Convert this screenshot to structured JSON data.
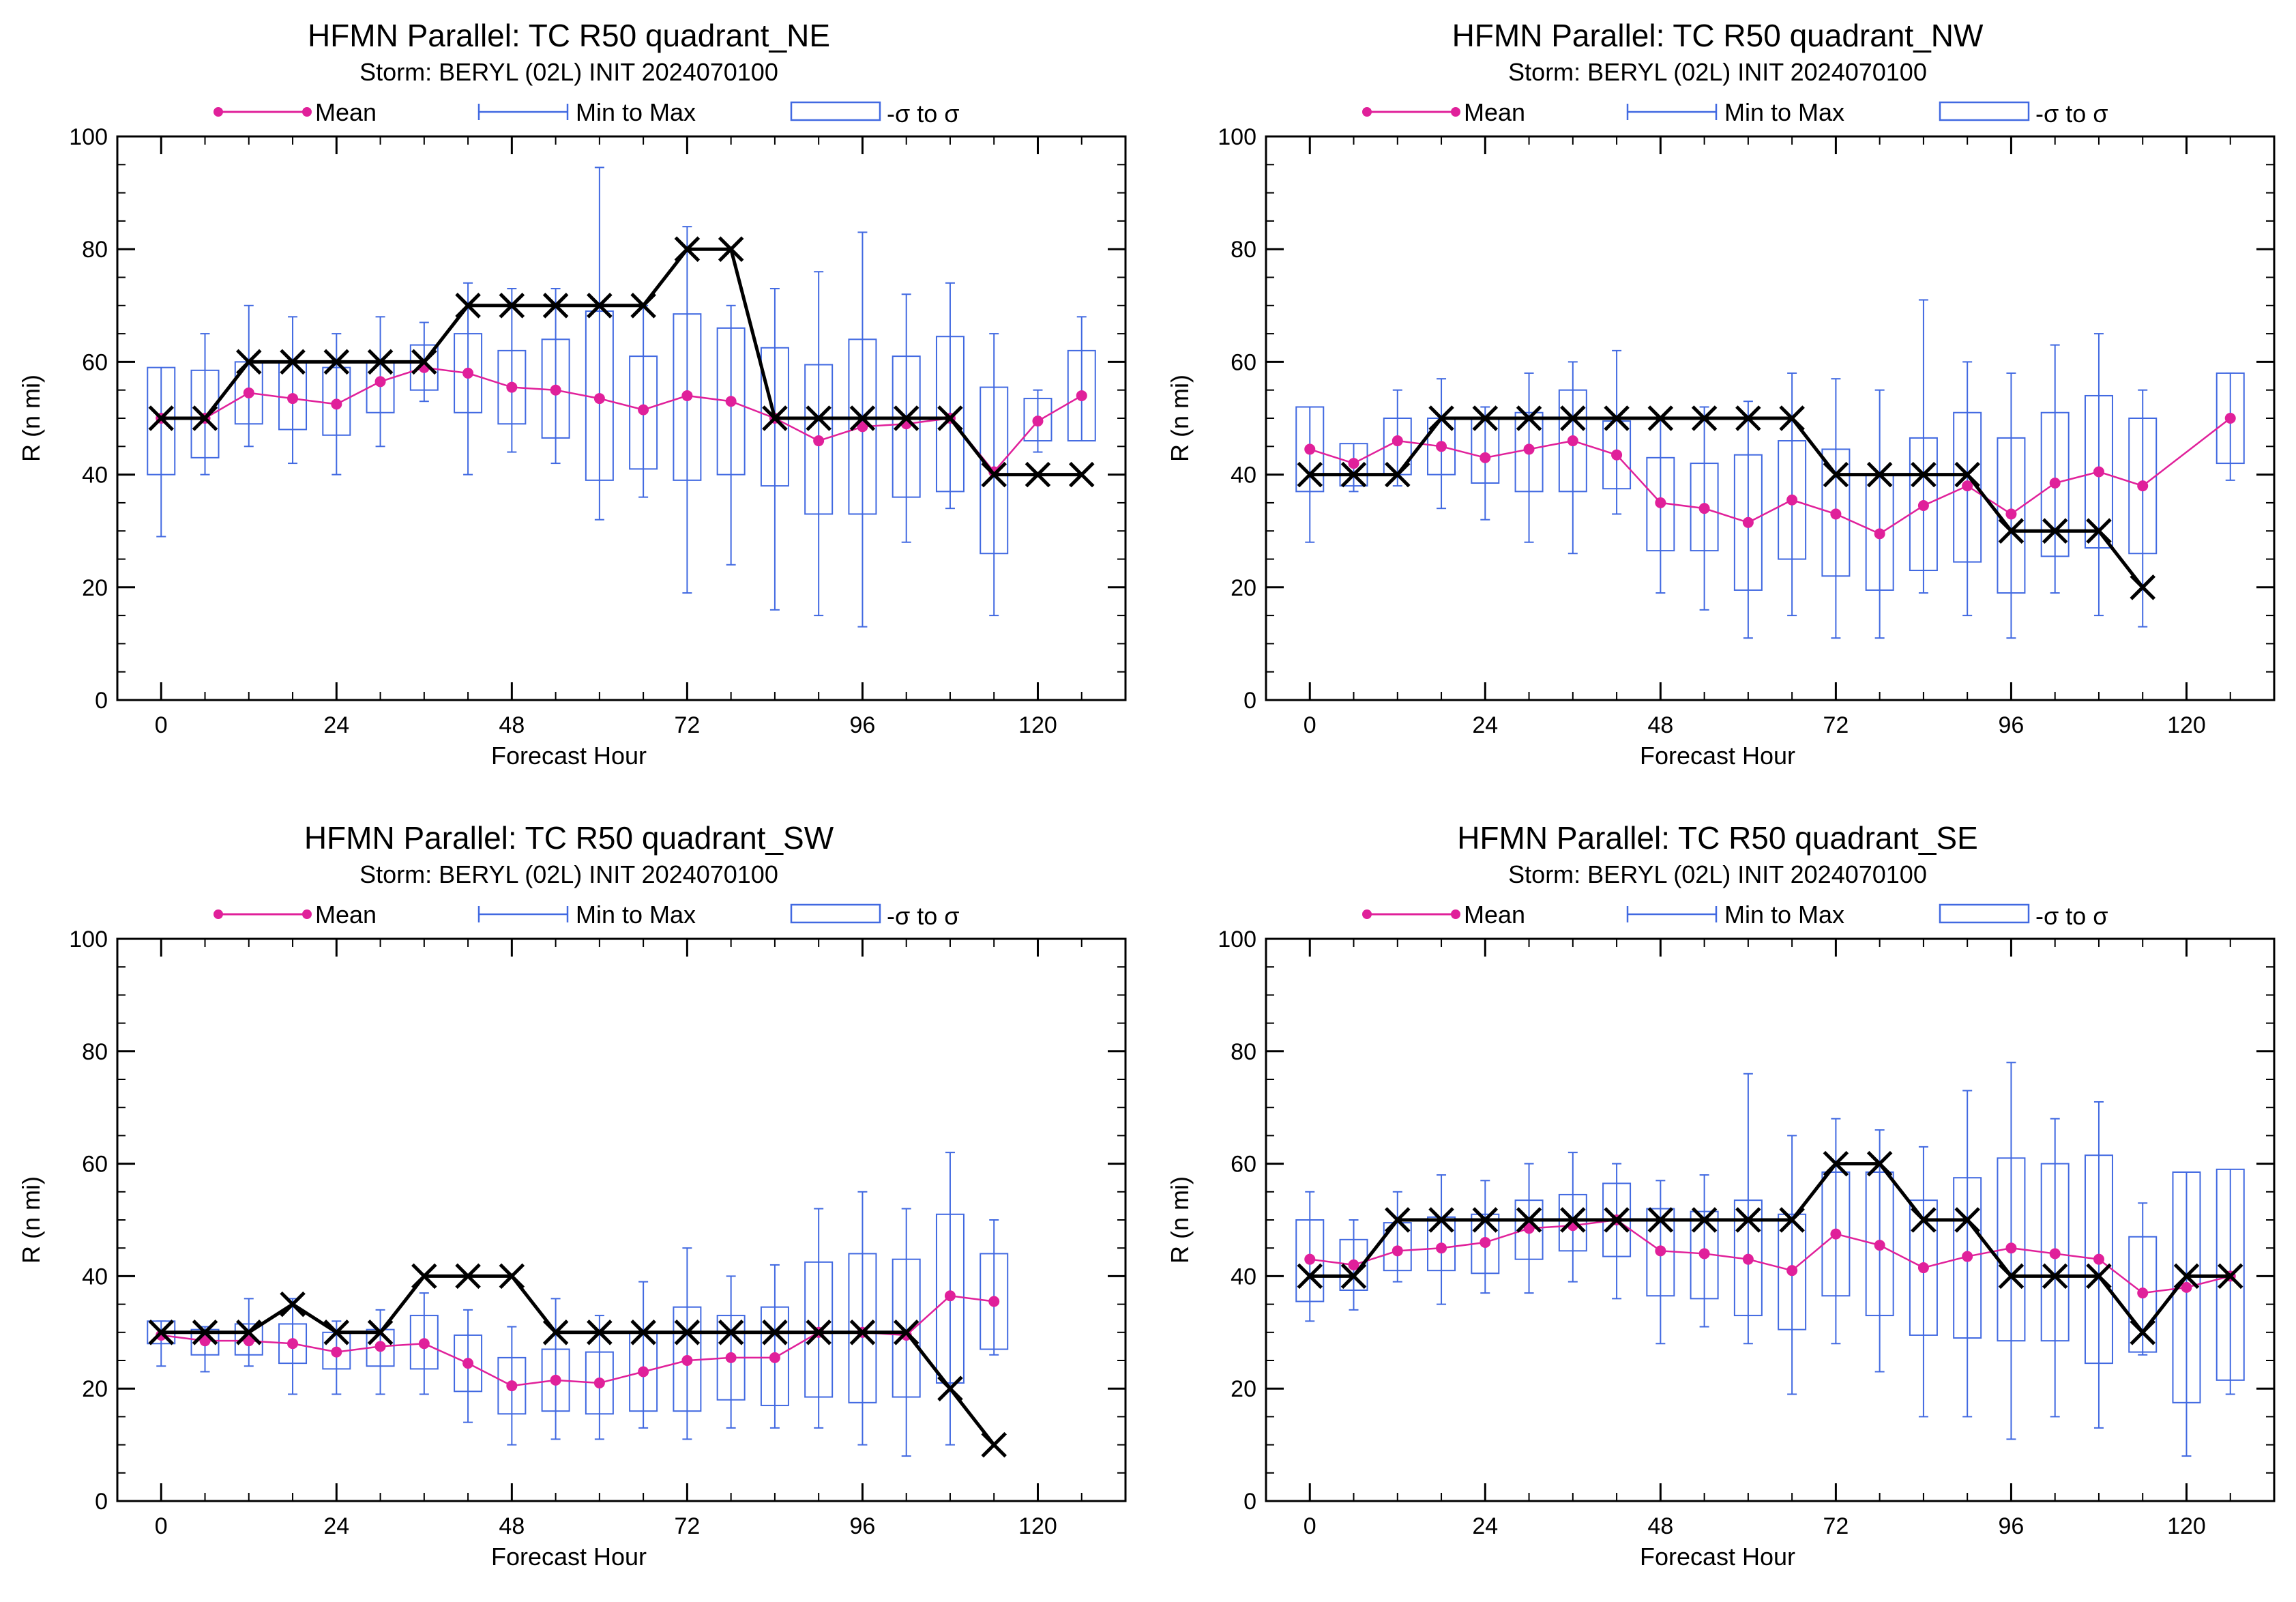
{
  "figure": {
    "legend": {
      "mean_label": "Mean",
      "minmax_label": "Min to Max",
      "sigma_label": "-σ to σ"
    },
    "colors": {
      "mean": "#e0209a",
      "box": "#4169e1",
      "obs": "#000000"
    }
  },
  "chart_data": [
    {
      "type": "box",
      "title": "HFMN Parallel: TC  R50 quadrant_NE",
      "subtitle": "Storm: BERYL (02L) INIT 2024070100",
      "xlabel": "Forecast Hour",
      "ylabel": "R (n mi)",
      "xlim": [
        -6,
        132
      ],
      "ylim": [
        0,
        100
      ],
      "xticks": [
        0,
        24,
        48,
        72,
        96,
        120
      ],
      "yticks": [
        0,
        20,
        40,
        60,
        80,
        100
      ],
      "hours": [
        0,
        6,
        12,
        18,
        24,
        30,
        36,
        42,
        48,
        54,
        60,
        66,
        72,
        78,
        84,
        90,
        96,
        102,
        108,
        114,
        120,
        126
      ],
      "mean": [
        50,
        50,
        54.5,
        53.5,
        52.5,
        56.5,
        59,
        58,
        55.5,
        55,
        53.5,
        51.5,
        54,
        53,
        50,
        46,
        48.5,
        49,
        50,
        40.5,
        49.5,
        54
      ],
      "box_low": [
        40,
        43,
        49,
        48,
        47,
        51,
        55,
        51,
        49,
        46.5,
        39,
        41,
        39,
        40,
        38,
        33,
        33,
        36,
        37,
        26,
        46,
        46
      ],
      "box_high": [
        59,
        58.5,
        60,
        60,
        59,
        60,
        63,
        65,
        62,
        64,
        69,
        61,
        68.5,
        66,
        62.5,
        59.5,
        64,
        61,
        64.5,
        55.5,
        53.5,
        62
      ],
      "min": [
        29,
        40,
        45,
        42,
        40,
        45,
        53,
        40,
        44,
        42,
        32,
        36,
        19,
        24,
        16,
        15,
        13,
        28,
        34,
        15,
        44,
        48
      ],
      "max": [
        57,
        65,
        70,
        68,
        65,
        68,
        67,
        74,
        73,
        73,
        94.5,
        70,
        84,
        70,
        73,
        76,
        83,
        72,
        74,
        65,
        55,
        68
      ],
      "obs_hours": [
        0,
        6,
        12,
        18,
        24,
        30,
        36,
        42,
        48,
        54,
        60,
        66,
        72,
        78,
        84,
        90,
        96,
        102,
        108,
        114,
        120,
        126
      ],
      "obs": [
        50,
        50,
        60,
        60,
        60,
        60,
        60,
        70,
        70,
        70,
        70,
        70,
        80,
        80,
        50,
        50,
        50,
        50,
        50,
        40,
        40,
        40
      ]
    },
    {
      "type": "box",
      "title": "HFMN Parallel: TC  R50 quadrant_NW",
      "subtitle": "Storm: BERYL (02L) INIT 2024070100",
      "xlabel": "Forecast Hour",
      "ylabel": "R (n mi)",
      "xlim": [
        -6,
        132
      ],
      "ylim": [
        0,
        100
      ],
      "xticks": [
        0,
        24,
        48,
        72,
        96,
        120
      ],
      "yticks": [
        0,
        20,
        40,
        60,
        80,
        100
      ],
      "hours": [
        0,
        6,
        12,
        18,
        24,
        30,
        36,
        42,
        48,
        54,
        60,
        66,
        72,
        78,
        84,
        90,
        96,
        102,
        108,
        114,
        126
      ],
      "mean": [
        44.5,
        42,
        46,
        45,
        43,
        44.5,
        46,
        43.5,
        35,
        34,
        31.5,
        35.5,
        33,
        29.5,
        34.5,
        38,
        33,
        38.5,
        40.5,
        38,
        50
      ],
      "box_low": [
        37,
        38,
        40,
        40,
        38.5,
        37,
        37,
        37.5,
        26.5,
        26.5,
        19.5,
        25,
        22,
        19.5,
        23,
        24.5,
        19,
        25.5,
        27,
        26,
        42
      ],
      "box_high": [
        52,
        45.5,
        50,
        50,
        50,
        51,
        55,
        49.5,
        43,
        42,
        43.5,
        46,
        44.5,
        40,
        46.5,
        51,
        46.5,
        51,
        54,
        50,
        58
      ],
      "min": [
        28,
        37,
        38,
        34,
        32,
        28,
        26,
        33,
        19,
        16,
        11,
        15,
        11,
        11,
        19,
        15,
        11,
        19,
        15,
        13,
        39
      ],
      "max": [
        50,
        45,
        55,
        57,
        52,
        58,
        60,
        62,
        50,
        52,
        53,
        58,
        57,
        55,
        71,
        60,
        58,
        63,
        65,
        55,
        58
      ],
      "obs_hours": [
        0,
        6,
        12,
        18,
        24,
        30,
        36,
        42,
        48,
        54,
        60,
        66,
        72,
        78,
        84,
        90,
        96,
        102,
        108,
        114
      ],
      "obs": [
        40,
        40,
        40,
        50,
        50,
        50,
        50,
        50,
        50,
        50,
        50,
        50,
        40,
        40,
        40,
        40,
        30,
        30,
        30,
        20
      ]
    },
    {
      "type": "box",
      "title": "HFMN Parallel: TC  R50 quadrant_SW",
      "subtitle": "Storm: BERYL (02L) INIT 2024070100",
      "xlabel": "Forecast Hour",
      "ylabel": "R (n mi)",
      "xlim": [
        -6,
        132
      ],
      "ylim": [
        0,
        100
      ],
      "xticks": [
        0,
        24,
        48,
        72,
        96,
        120
      ],
      "yticks": [
        0,
        20,
        40,
        60,
        80,
        100
      ],
      "hours": [
        0,
        6,
        12,
        18,
        24,
        30,
        36,
        42,
        48,
        54,
        60,
        66,
        72,
        78,
        84,
        90,
        96,
        102,
        108,
        114
      ],
      "mean": [
        29.5,
        28.5,
        28.5,
        28,
        26.5,
        27.5,
        28,
        24.5,
        20.5,
        21.5,
        21,
        23,
        25,
        25.5,
        25.5,
        30,
        30,
        29.5,
        36.5,
        35.5
      ],
      "box_low": [
        28,
        26,
        26,
        24.5,
        23.5,
        24,
        23.5,
        19.5,
        15.5,
        16,
        15.5,
        16,
        16,
        18,
        17,
        18.5,
        17.5,
        18.5,
        21,
        27
      ],
      "box_high": [
        32,
        30.5,
        31.5,
        31.5,
        30,
        30.5,
        33,
        29.5,
        25.5,
        27,
        26.5,
        30,
        34.5,
        33,
        34.5,
        42.5,
        44,
        43,
        51,
        44
      ],
      "min": [
        24,
        23,
        24,
        19,
        19,
        19,
        19,
        14,
        10,
        11,
        11,
        13,
        11,
        13,
        13,
        13,
        10,
        8,
        10,
        26
      ],
      "max": [
        32,
        31,
        36,
        36,
        32,
        34,
        37,
        34,
        31,
        36,
        33,
        39,
        45,
        40,
        42,
        52,
        55,
        52,
        62,
        50
      ],
      "obs_hours": [
        0,
        6,
        12,
        18,
        24,
        30,
        36,
        42,
        48,
        54,
        60,
        66,
        72,
        78,
        84,
        90,
        96,
        102,
        108,
        114
      ],
      "obs": [
        30,
        30,
        30,
        35,
        30,
        30,
        40,
        40,
        40,
        30,
        30,
        30,
        30,
        30,
        30,
        30,
        30,
        30,
        20,
        10
      ]
    },
    {
      "type": "box",
      "title": "HFMN Parallel: TC  R50 quadrant_SE",
      "subtitle": "Storm: BERYL (02L) INIT 2024070100",
      "xlabel": "Forecast Hour",
      "ylabel": "R (n mi)",
      "xlim": [
        -6,
        132
      ],
      "ylim": [
        0,
        100
      ],
      "xticks": [
        0,
        24,
        48,
        72,
        96,
        120
      ],
      "yticks": [
        0,
        20,
        40,
        60,
        80,
        100
      ],
      "hours": [
        0,
        6,
        12,
        18,
        24,
        30,
        36,
        42,
        48,
        54,
        60,
        66,
        72,
        78,
        84,
        90,
        96,
        102,
        108,
        114,
        120,
        126
      ],
      "mean": [
        43,
        42,
        44.5,
        45,
        46,
        48.5,
        49,
        50,
        44.5,
        44,
        43,
        41,
        47.5,
        45.5,
        41.5,
        43.5,
        45,
        44,
        43,
        37,
        38,
        40
      ],
      "box_low": [
        35.5,
        37.5,
        41,
        41,
        40.5,
        43,
        44.5,
        43.5,
        36.5,
        36,
        33,
        30.5,
        36.5,
        33,
        29.5,
        29,
        28.5,
        28.5,
        24.5,
        26.5,
        17.5,
        21.5
      ],
      "box_high": [
        50,
        46.5,
        49.5,
        50.5,
        51,
        53.5,
        54.5,
        56.5,
        52,
        51.5,
        53.5,
        51,
        58.5,
        58.5,
        53.5,
        57.5,
        61,
        60,
        61.5,
        47,
        58.5,
        59
      ],
      "min": [
        32,
        34,
        39,
        35,
        37,
        37,
        39,
        36,
        28,
        31,
        28,
        19,
        28,
        23,
        15,
        15,
        11,
        15,
        13,
        26,
        8,
        19
      ],
      "max": [
        55,
        50,
        55,
        58,
        57,
        60,
        62,
        60,
        57,
        58,
        76,
        65,
        68,
        66,
        63,
        73,
        78,
        68,
        71,
        53,
        58,
        58
      ],
      "obs_hours": [
        0,
        6,
        12,
        18,
        24,
        30,
        36,
        42,
        48,
        54,
        60,
        66,
        72,
        78,
        84,
        90,
        96,
        102,
        108,
        114,
        120,
        126
      ],
      "obs": [
        40,
        40,
        50,
        50,
        50,
        50,
        50,
        50,
        50,
        50,
        50,
        50,
        60,
        60,
        50,
        50,
        40,
        40,
        40,
        30,
        40,
        40
      ]
    }
  ]
}
